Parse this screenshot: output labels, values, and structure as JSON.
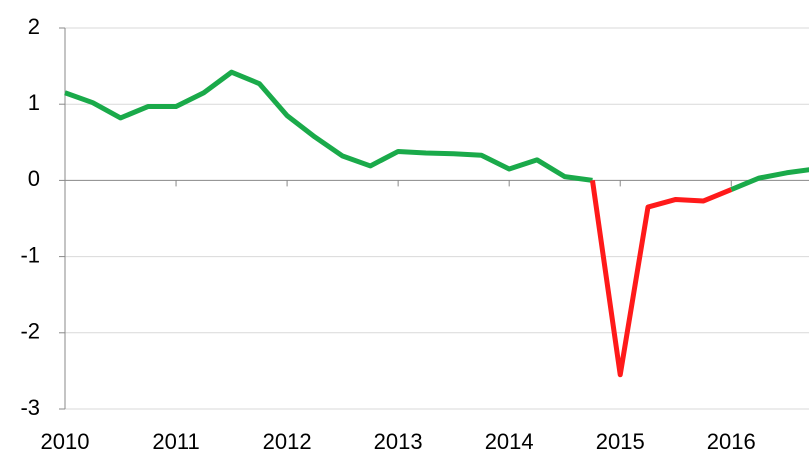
{
  "chart_data": {
    "type": "line",
    "x": [
      2010,
      2010.25,
      2010.5,
      2010.75,
      2011,
      2011.25,
      2011.5,
      2011.75,
      2012,
      2012.25,
      2012.5,
      2012.75,
      2013,
      2013.25,
      2013.5,
      2013.75,
      2014,
      2014.25,
      2014.5,
      2014.75,
      2015,
      2015.25,
      2015.5,
      2015.75,
      2016,
      2016.25,
      2016.5,
      2016.75
    ],
    "series": [
      {
        "color": "#1aaa4a",
        "values": [
          1.15,
          1.02,
          0.82,
          0.97,
          0.97,
          1.15,
          1.42,
          1.27,
          0.85,
          0.57,
          0.32,
          0.19,
          0.38,
          0.36,
          0.35,
          0.33,
          0.15,
          0.27,
          0.05,
          0.0,
          null,
          null,
          null,
          null,
          -0.12,
          0.03,
          0.1,
          0.15
        ]
      },
      {
        "color": "#ff1a1a",
        "values": [
          null,
          null,
          null,
          null,
          null,
          null,
          null,
          null,
          null,
          null,
          null,
          null,
          null,
          null,
          null,
          null,
          null,
          null,
          null,
          0.0,
          -2.55,
          -0.35,
          -0.25,
          -0.27,
          -0.12,
          null,
          null,
          null
        ]
      }
    ],
    "xlim": [
      2010,
      2016.7
    ],
    "xticks": [
      2010,
      2011,
      2012,
      2013,
      2014,
      2015,
      2016
    ],
    "ylim": [
      -3,
      2
    ],
    "yticks": [
      -3,
      -2,
      -1,
      0,
      1,
      2
    ],
    "grid": true
  }
}
